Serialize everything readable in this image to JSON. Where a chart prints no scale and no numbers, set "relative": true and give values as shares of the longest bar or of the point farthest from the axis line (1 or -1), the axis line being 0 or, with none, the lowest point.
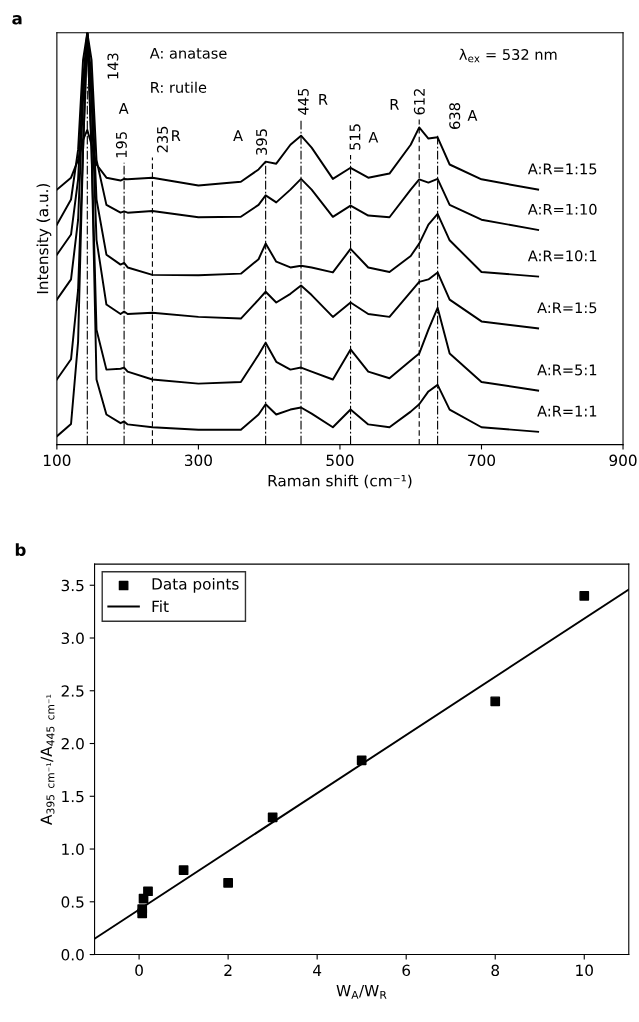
{
  "chart_data": [
    {
      "type": "line",
      "title": "a",
      "xlabel": "Raman shift (cm⁻¹)",
      "ylabel": "Intensity (a.u.)",
      "relative": true,
      "tick_labels": "x",
      "xlim": [
        100,
        900
      ],
      "xticks": [
        100,
        300,
        500,
        700,
        900
      ],
      "line_style": "solid",
      "x": [
        100,
        120,
        130,
        137,
        143,
        149,
        156,
        170,
        190,
        195,
        200,
        235,
        300,
        360,
        385,
        395,
        410,
        430,
        445,
        460,
        490,
        515,
        540,
        570,
        600,
        612,
        625,
        638,
        655,
        700,
        780
      ],
      "series": [
        {
          "name": "A:R=1:15",
          "color": "#000000",
          "values": [
            0.619,
            0.648,
            0.691,
            0.74,
            0.764,
            0.728,
            0.68,
            0.648,
            0.641,
            0.645,
            0.644,
            0.648,
            0.629,
            0.638,
            0.668,
            0.687,
            0.682,
            0.728,
            0.75,
            0.721,
            0.645,
            0.672,
            0.648,
            0.658,
            0.728,
            0.77,
            0.743,
            0.746,
            0.68,
            0.644,
            0.619
          ]
        },
        {
          "name": "A:R=1:10",
          "color": "#000000",
          "values": [
            0.534,
            0.595,
            0.716,
            0.934,
            1.0,
            0.934,
            0.691,
            0.582,
            0.563,
            0.566,
            0.563,
            0.567,
            0.552,
            0.553,
            0.582,
            0.605,
            0.588,
            0.619,
            0.645,
            0.619,
            0.553,
            0.58,
            0.556,
            0.552,
            0.619,
            0.644,
            0.636,
            0.645,
            0.582,
            0.546,
            0.521
          ]
        },
        {
          "name": "A:R=10:1",
          "color": "#000000",
          "values": [
            0.461,
            0.51,
            0.644,
            0.886,
            1.0,
            0.886,
            0.595,
            0.461,
            0.437,
            0.441,
            0.43,
            0.412,
            0.411,
            0.415,
            0.45,
            0.488,
            0.444,
            0.43,
            0.434,
            0.43,
            0.418,
            0.475,
            0.43,
            0.419,
            0.458,
            0.488,
            0.534,
            0.56,
            0.496,
            0.419,
            0.408
          ]
        },
        {
          "name": "A:R=1:5",
          "color": "#000000",
          "values": [
            0.352,
            0.401,
            0.546,
            0.838,
            1.0,
            0.838,
            0.497,
            0.34,
            0.317,
            0.323,
            0.317,
            0.32,
            0.31,
            0.306,
            0.352,
            0.371,
            0.345,
            0.366,
            0.386,
            0.363,
            0.31,
            0.345,
            0.317,
            0.31,
            0.371,
            0.395,
            0.401,
            0.418,
            0.352,
            0.299,
            0.282
          ]
        },
        {
          "name": "A:R=5:1",
          "color": "#000000",
          "values": [
            0.158,
            0.207,
            0.376,
            0.716,
            1.0,
            0.716,
            0.279,
            0.182,
            0.184,
            0.187,
            0.177,
            0.158,
            0.148,
            0.152,
            0.218,
            0.247,
            0.201,
            0.182,
            0.187,
            0.177,
            0.158,
            0.231,
            0.177,
            0.161,
            0.204,
            0.221,
            0.279,
            0.332,
            0.221,
            0.152,
            0.131
          ]
        },
        {
          "name": "A:R=1:1",
          "color": "#000000",
          "values": [
            0.02,
            0.05,
            0.25,
            0.716,
            1.0,
            0.716,
            0.158,
            0.073,
            0.052,
            0.056,
            0.049,
            0.042,
            0.036,
            0.036,
            0.073,
            0.098,
            0.073,
            0.085,
            0.09,
            0.075,
            0.042,
            0.085,
            0.049,
            0.042,
            0.08,
            0.098,
            0.129,
            0.145,
            0.085,
            0.042,
            0.031
          ]
        }
      ],
      "ref_lines": [
        {
          "axis": "x",
          "value": 143,
          "label": "143",
          "line_style": "dashdot",
          "color": "#000000"
        },
        {
          "axis": "x",
          "value": 195,
          "label": "195",
          "line_style": "dashdot",
          "color": "#000000"
        },
        {
          "axis": "x",
          "value": 235,
          "label": "235",
          "line_style": "dashed",
          "color": "#000000"
        },
        {
          "axis": "x",
          "value": 395,
          "label": "395",
          "line_style": "dashdot",
          "color": "#000000"
        },
        {
          "axis": "x",
          "value": 445,
          "label": "445",
          "line_style": "dashdot",
          "color": "#000000"
        },
        {
          "axis": "x",
          "value": 515,
          "label": "515",
          "line_style": "dashdot",
          "color": "#000000"
        },
        {
          "axis": "x",
          "value": 612,
          "label": "612",
          "line_style": "dashed",
          "color": "#000000"
        },
        {
          "axis": "x",
          "value": 638,
          "label": "638",
          "line_style": "dashdot",
          "color": "#000000"
        }
      ],
      "annotations": [
        "A: anatase",
        "R: rutile",
        "λ$_{ex}$ = 532 nm",
        "A",
        "R",
        "A",
        "R",
        "A",
        "R",
        "A"
      ]
    },
    {
      "type": "scatter",
      "title": "b",
      "xlabel": "W$_{A}$/W$_{R}$",
      "ylabel": "A$_{395}$ $_{cm⁻¹}$/A$_{445}$ $_{cm⁻¹}$",
      "xlim": [
        -1,
        11
      ],
      "xticks": [
        0,
        2,
        4,
        6,
        8,
        10
      ],
      "ylim": [
        0,
        3.7
      ],
      "yticks": [
        {
          "value": 0,
          "label": "0.0"
        },
        {
          "value": 0.5,
          "label": "0.5"
        },
        {
          "value": 1,
          "label": "1.0"
        },
        {
          "value": 1.5,
          "label": "1.5"
        },
        {
          "value": 2,
          "label": "2.0"
        },
        {
          "value": 2.5,
          "label": "2.5"
        },
        {
          "value": 3,
          "label": "3.0"
        },
        {
          "value": 3.5,
          "label": "3.5"
        }
      ],
      "legend": "top left",
      "series": [
        {
          "name": "Data points",
          "type": "scatter",
          "marker": "square",
          "color": "#000000",
          "x": [
            0.07,
            0.07,
            0.1,
            0.2,
            1,
            2,
            3,
            5,
            8,
            10
          ],
          "values": [
            0.39,
            0.43,
            0.53,
            0.6,
            0.8,
            0.68,
            1.3,
            1.84,
            2.4,
            3.4
          ]
        },
        {
          "name": "Fit",
          "type": "line",
          "color": "#000000",
          "x": [
            -1,
            11
          ],
          "values": [
            0.15,
            3.46
          ]
        }
      ]
    }
  ]
}
